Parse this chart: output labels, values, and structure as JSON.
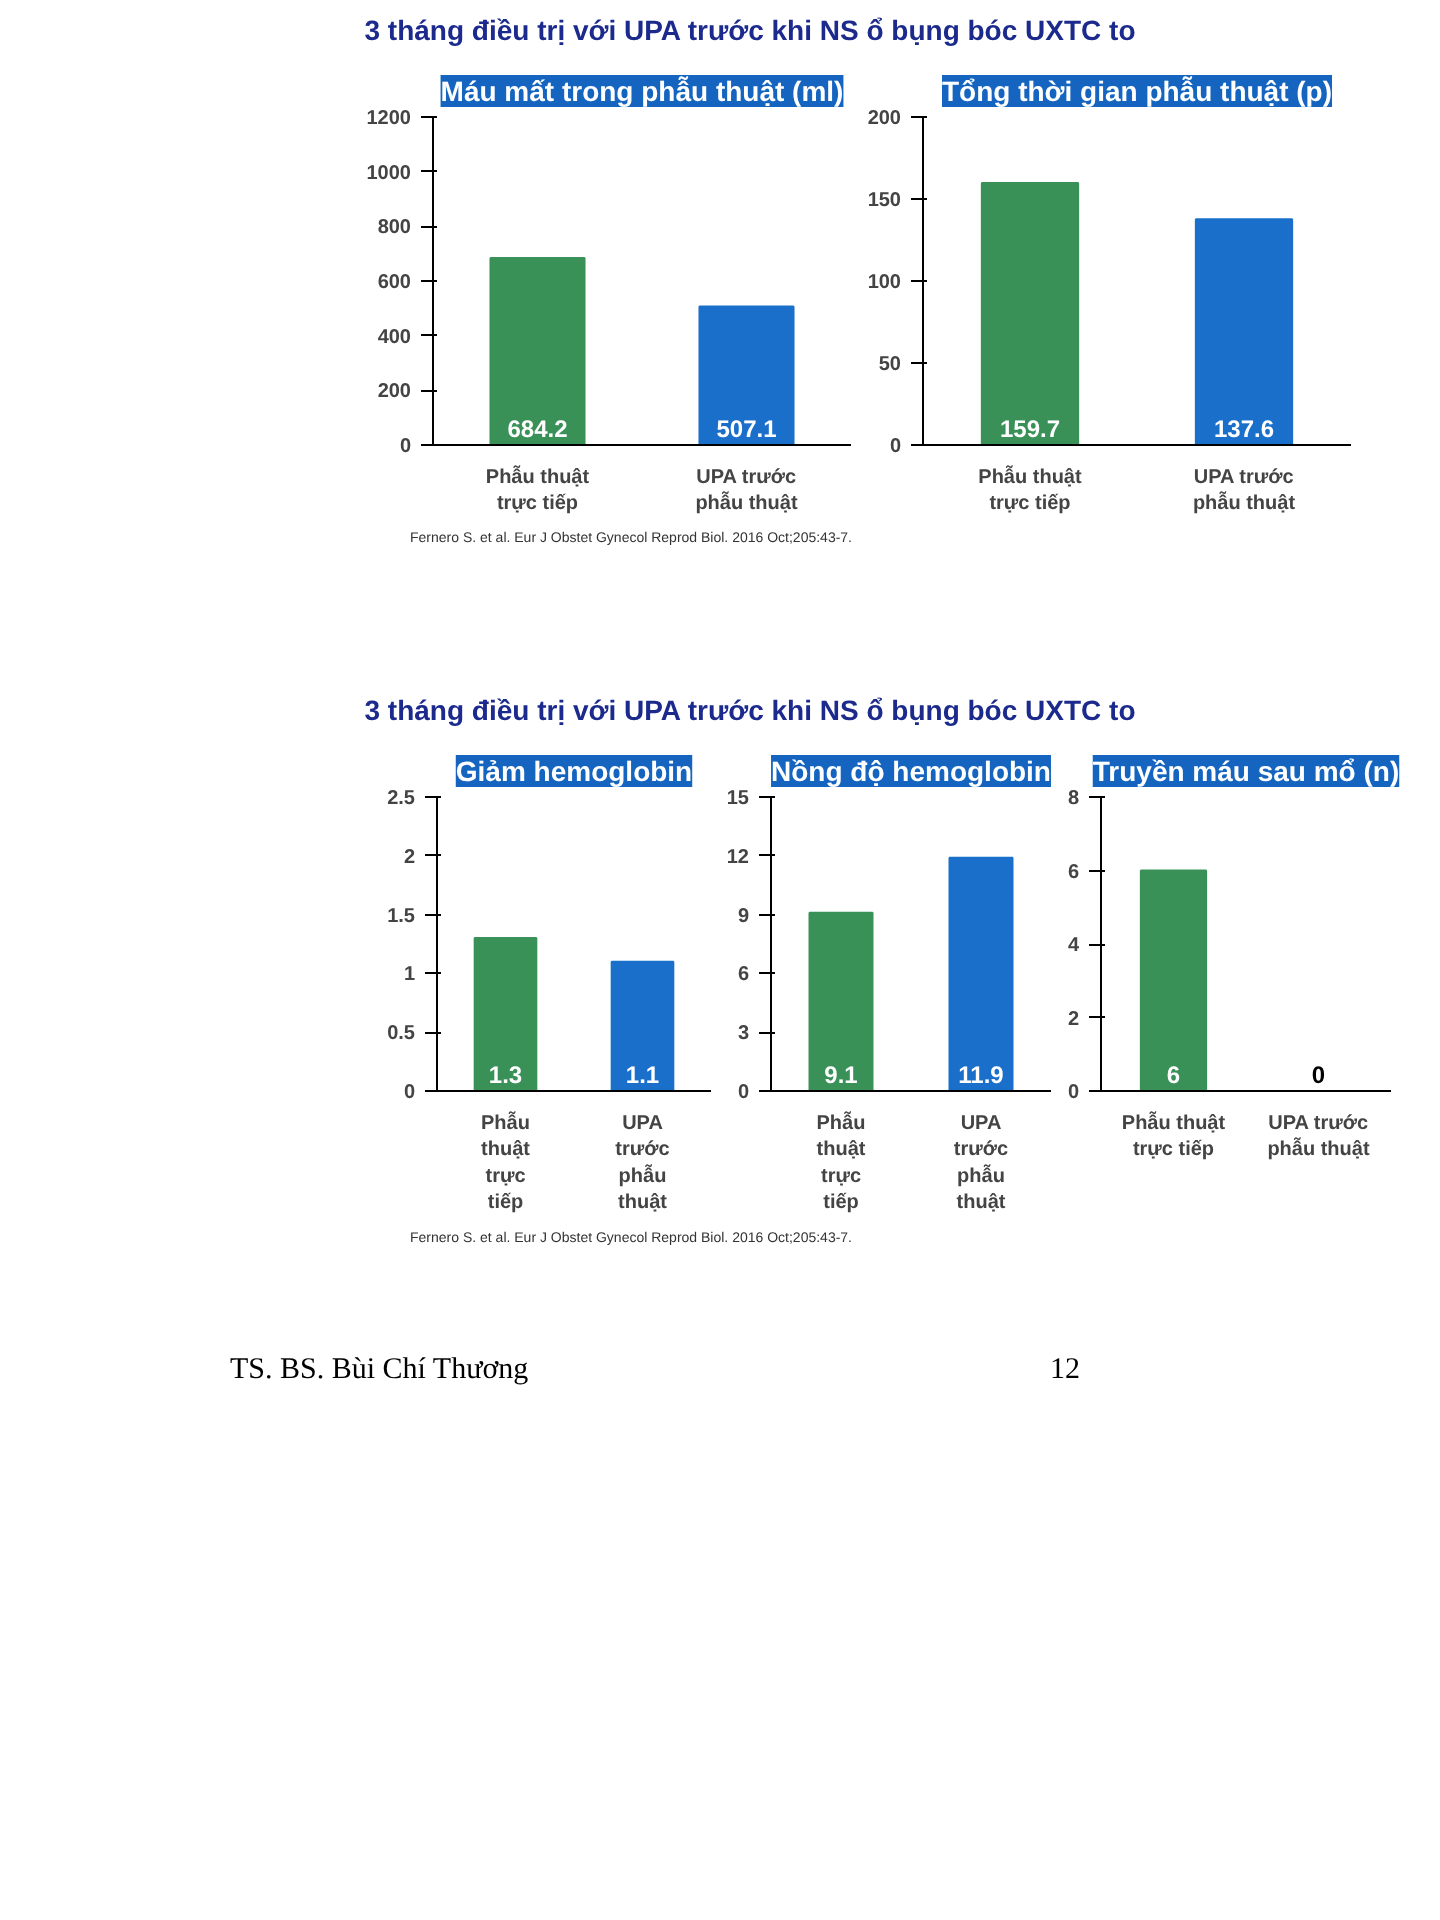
{
  "chart_data": [
    {
      "type": "bar",
      "title": "Máu mất trong phẫu thuật (ml)",
      "categories": [
        "Phẫu thuật trực tiếp",
        "UPA trước phẫu thuật"
      ],
      "values": [
        684.2,
        507.1
      ],
      "colors": [
        "#3a9158",
        "#1a6fca"
      ],
      "ylim": [
        0,
        1200
      ],
      "yticks": [
        0,
        200,
        400,
        600,
        800,
        1000,
        1200
      ],
      "grid": false,
      "data_labels": true,
      "annotations": [
        "3 tháng điều trị với UPA trước khi NS ổ bụng bóc UXTC to"
      ]
    },
    {
      "type": "bar",
      "title": "Tổng thời gian phẫu thuật (p)",
      "categories": [
        "Phẫu thuật trực tiếp",
        "UPA trước phẫu thuật"
      ],
      "values": [
        159.7,
        137.6
      ],
      "colors": [
        "#3a9158",
        "#1a6fca"
      ],
      "ylim": [
        0,
        200
      ],
      "yticks": [
        0,
        50,
        100,
        150,
        200
      ],
      "grid": false,
      "data_labels": true,
      "annotations": [
        "Fernero S. et al. Eur J Obstet Gynecol Reprod Biol. 2016 Oct;205:43-7."
      ]
    },
    {
      "type": "bar",
      "title": "Giảm hemoglobin",
      "categories": [
        "Phẫu thuật trực tiếp",
        "UPA trước phẫu thuật"
      ],
      "values": [
        1.3,
        1.1
      ],
      "colors": [
        "#3a9158",
        "#1a6fca"
      ],
      "ylim": [
        0,
        2.5
      ],
      "yticks": [
        0,
        0.5,
        1,
        1.5,
        2,
        2.5
      ],
      "grid": false,
      "data_labels": true,
      "annotations": [
        "3 tháng điều trị với UPA trước khi NS ổ bụng bóc UXTC to"
      ]
    },
    {
      "type": "bar",
      "title": "Nồng độ hemoglobin",
      "categories": [
        "Phẫu thuật trực tiếp",
        "UPA trước phẫu thuật"
      ],
      "values": [
        9.1,
        11.9
      ],
      "colors": [
        "#3a9158",
        "#1a6fca"
      ],
      "ylim": [
        0,
        15
      ],
      "yticks": [
        0,
        3,
        6,
        9,
        12,
        15
      ],
      "grid": false,
      "data_labels": true
    },
    {
      "type": "bar",
      "title": "Truyền máu sau mổ (n)",
      "categories": [
        "Phẫu thuật trực tiếp",
        "UPA trước phẫu thuật"
      ],
      "values": [
        6,
        0
      ],
      "colors": [
        "#3a9158",
        "#1a6fca"
      ],
      "ylim": [
        0,
        8
      ],
      "yticks": [
        0,
        2,
        4,
        6,
        8
      ],
      "grid": false,
      "data_labels": true,
      "annotations": [
        "Fernero S. et al. Eur J Obstet Gynecol Reprod Biol. 2016 Oct;205:43-7.",
        "TS. BS. Bùi Chí Thương",
        "12"
      ]
    }
  ]
}
